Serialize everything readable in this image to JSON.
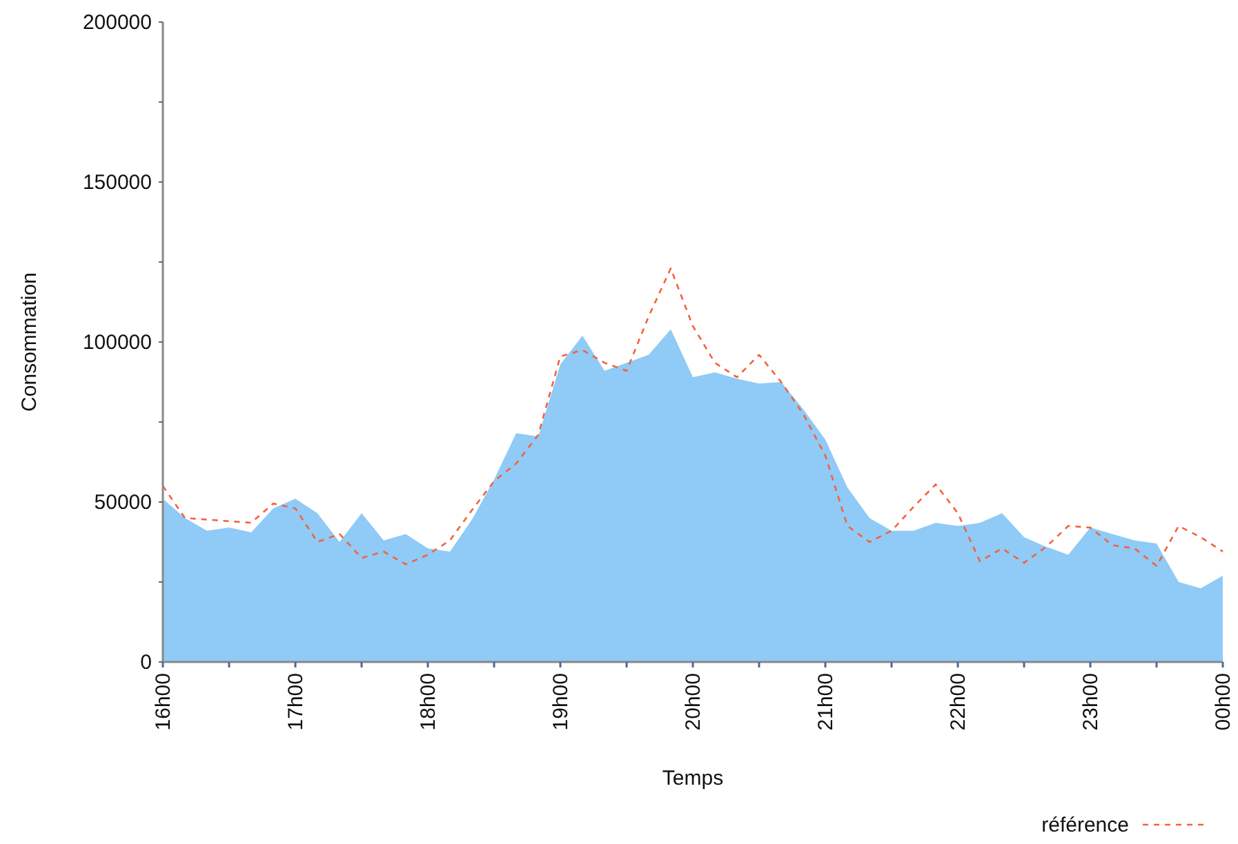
{
  "chart_data": {
    "type": "area",
    "xlabel": "Temps",
    "ylabel": "Consommation",
    "categories": [
      "16h00",
      null,
      null,
      null,
      null,
      null,
      "17h00",
      null,
      null,
      null,
      null,
      null,
      "18h00",
      null,
      null,
      null,
      null,
      null,
      "19h00",
      null,
      null,
      null,
      null,
      null,
      "20h00",
      null,
      null,
      null,
      null,
      null,
      "21h00",
      null,
      null,
      null,
      null,
      null,
      "22h00",
      null,
      null,
      null,
      null,
      null,
      "23h00",
      null,
      null,
      null,
      null,
      null,
      "00h00"
    ],
    "series": [
      {
        "color": "#90caf6",
        "values": [
          51000,
          45000,
          41000,
          42000,
          40500,
          48000,
          51000,
          46500,
          37500,
          46500,
          38000,
          40000,
          35500,
          34500,
          44500,
          57000,
          71500,
          70500,
          93000,
          102000,
          91000,
          93500,
          96000,
          104000,
          89000,
          90500,
          88500,
          87000,
          87500,
          79000,
          69500,
          54500,
          45000,
          41000,
          41000,
          43500,
          42500,
          43500,
          46500,
          39000,
          36000,
          33500,
          42000,
          40000,
          38000,
          37000,
          25000,
          23000,
          27000
        ]
      },
      {
        "type": "line",
        "name": "référence",
        "color": "#f4623a",
        "line_style": "dashed",
        "marker": "none",
        "values": [
          55000,
          45000,
          44500,
          44000,
          43500,
          49500,
          48000,
          37500,
          40000,
          32500,
          34500,
          30500,
          33500,
          38000,
          47500,
          56500,
          62000,
          71000,
          95500,
          97500,
          93500,
          91000,
          108000,
          123000,
          105000,
          93500,
          89000,
          96000,
          87500,
          77500,
          64500,
          42500,
          37500,
          41000,
          48500,
          55500,
          46500,
          31500,
          35500,
          31000,
          36000,
          42500,
          42000,
          36500,
          35500,
          30000,
          42500,
          39000,
          34500
        ]
      }
    ],
    "ylim": [
      0,
      200000
    ],
    "yticks": [
      0,
      {
        "value": 25000,
        "label": null
      },
      50000,
      {
        "value": 75000,
        "label": null
      },
      100000,
      {
        "value": 125000,
        "label": null
      },
      150000,
      {
        "value": 175000,
        "label": null
      },
      200000
    ],
    "grid": false,
    "legend": "bottom right"
  }
}
